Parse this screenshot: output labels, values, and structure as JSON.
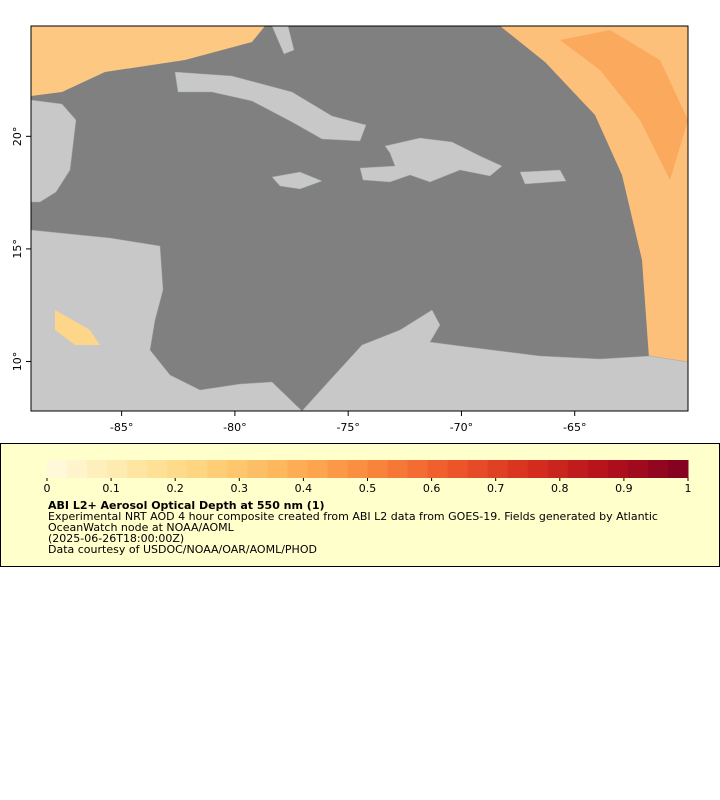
{
  "map": {
    "xlim": [
      -89,
      -60
    ],
    "ylim": [
      7.8,
      24.9
    ],
    "xticks": [
      {
        "value": -85,
        "label": "-85°"
      },
      {
        "value": -80,
        "label": "-80°"
      },
      {
        "value": -75,
        "label": "-75°"
      },
      {
        "value": -70,
        "label": "-70°"
      },
      {
        "value": -65,
        "label": "-65°"
      }
    ],
    "yticks": [
      {
        "value": 10,
        "label": "10°"
      },
      {
        "value": 15,
        "label": "15°"
      },
      {
        "value": 20,
        "label": "20°"
      }
    ],
    "ocean_color": "#808080",
    "land_color": "#c8c8c8"
  },
  "colorbar": {
    "range": [
      0,
      1
    ],
    "ticks": [
      0,
      0.1,
      0.2,
      0.3,
      0.4,
      0.5,
      0.6,
      0.7,
      0.8,
      0.9,
      1
    ],
    "colors": [
      "#fffbe0",
      "#fee9a8",
      "#fed27a",
      "#fdb358",
      "#f98a3e",
      "#ef5a2c",
      "#d7301f",
      "#b3101c",
      "#7f0022"
    ]
  },
  "caption": {
    "title": "ABI L2+ Aerosol Optical Depth at 550 nm (1)",
    "description": "Experimental NRT AOD 4 hour composite created from ABI L2 data from GOES-19. Fields generated by Atlantic OceanWatch node at NOAA/AOML",
    "time": "(2025-06-26T18:00:00Z)",
    "credit": "Data courtesy of USDOC/NOAA/OAR/AOML/PHOD"
  }
}
